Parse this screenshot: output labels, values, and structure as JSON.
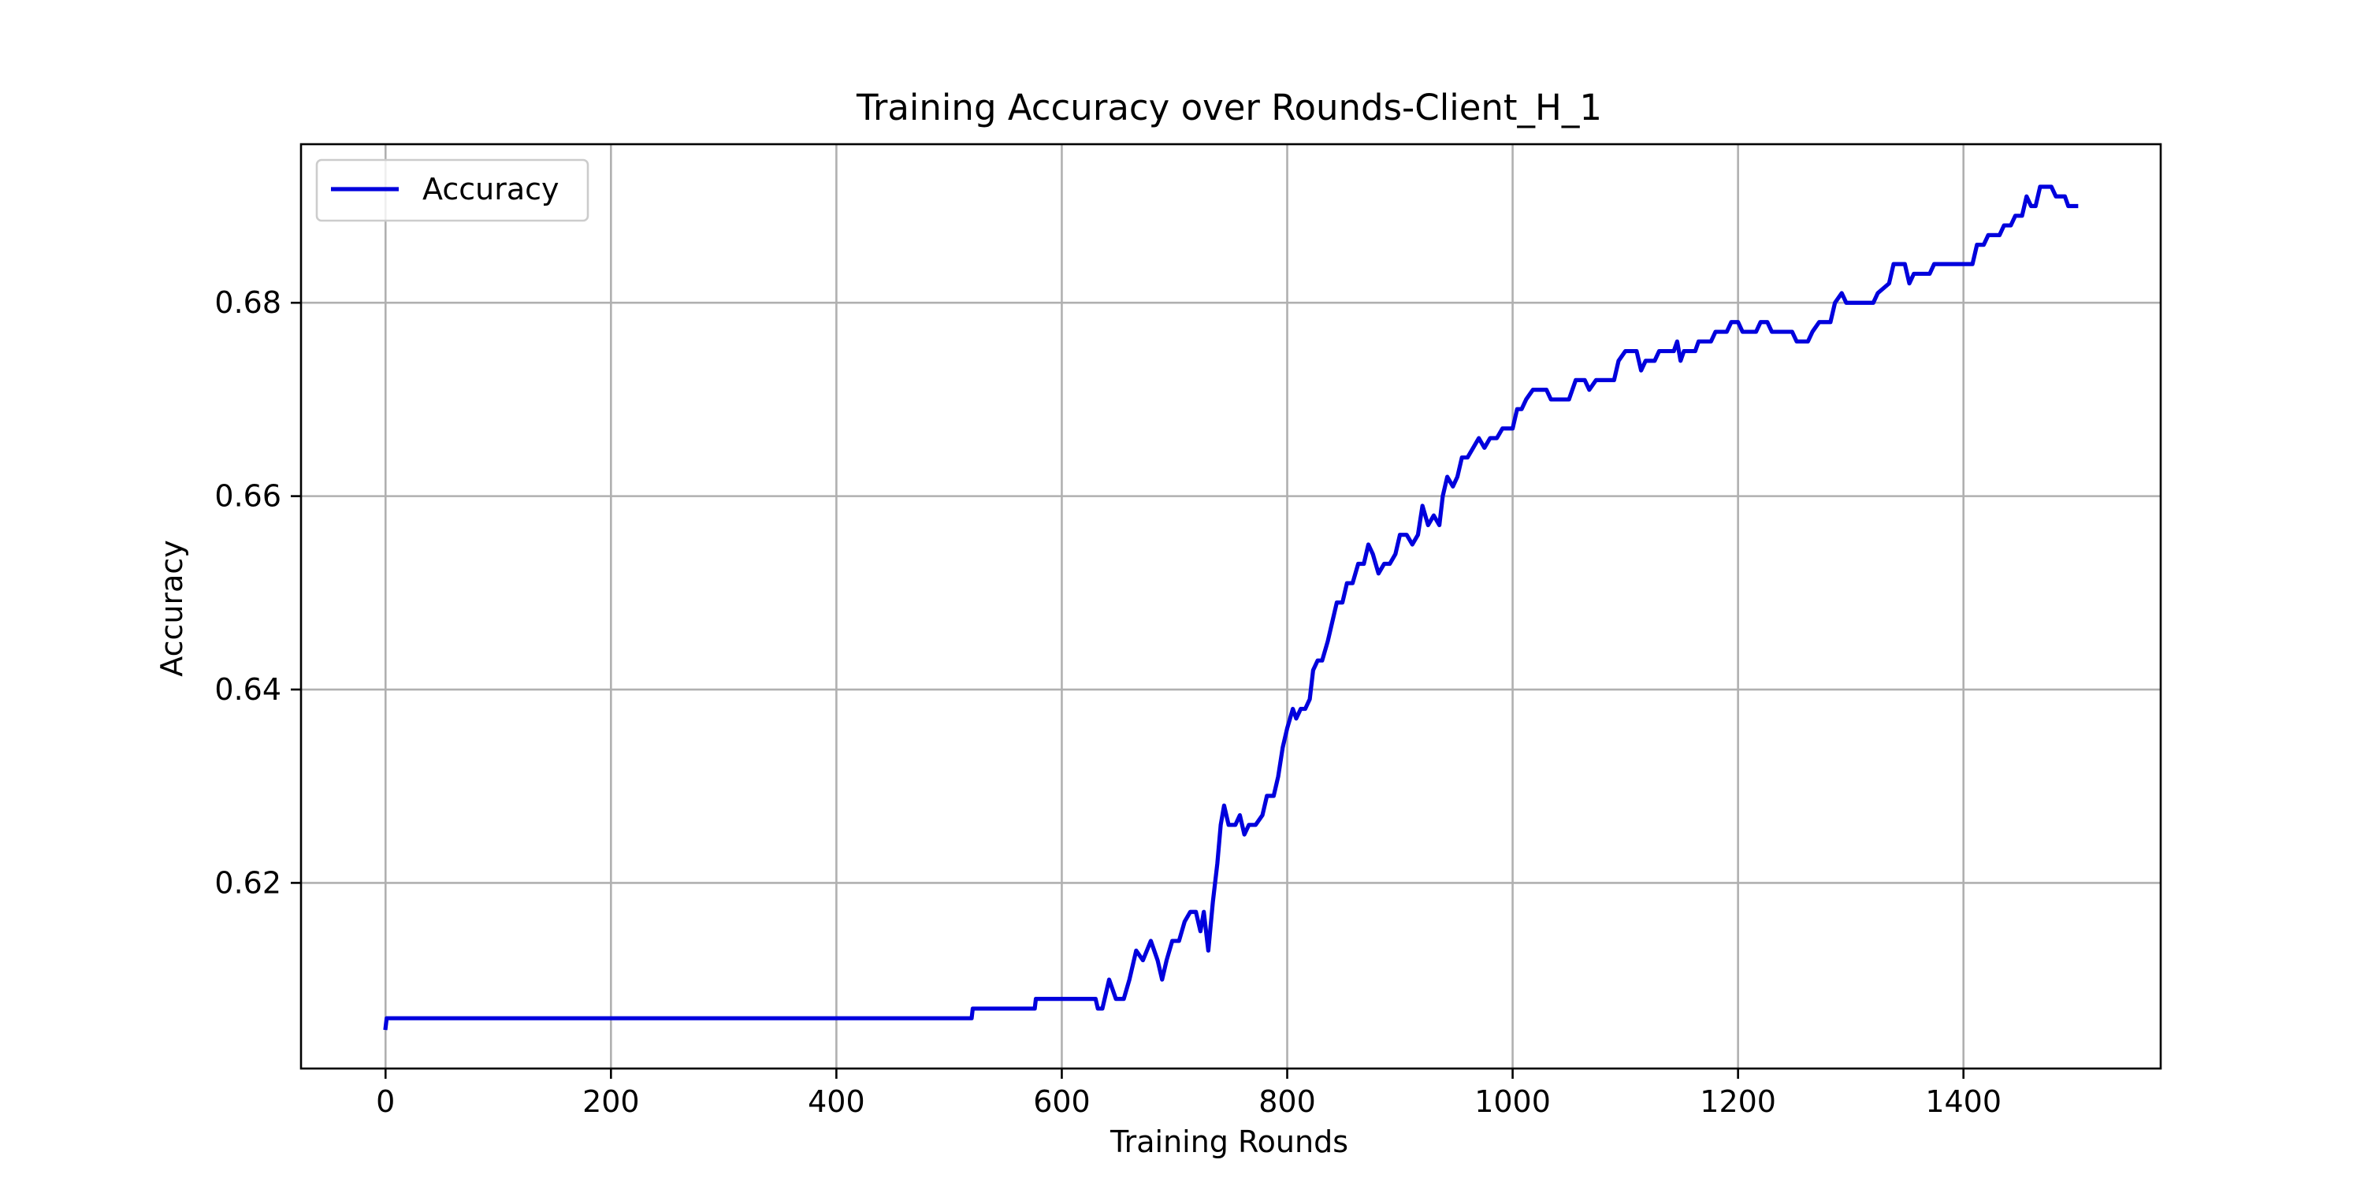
{
  "chart_data": {
    "type": "line",
    "title": "Training Accuracy over Rounds-Client_H_1",
    "xlabel": "Training Rounds",
    "ylabel": "Accuracy",
    "xlim": [
      -75,
      1575
    ],
    "ylim": [
      0.6008,
      0.6964
    ],
    "x_ticks": [
      0,
      200,
      400,
      600,
      800,
      1000,
      1200,
      1400
    ],
    "x_tick_labels": [
      "0",
      "200",
      "400",
      "600",
      "800",
      "1000",
      "1200",
      "1400"
    ],
    "y_ticks": [
      0.62,
      0.64,
      0.66,
      0.68
    ],
    "y_tick_labels": [
      "0.62",
      "0.64",
      "0.66",
      "0.68"
    ],
    "grid": true,
    "legend": {
      "position": "top-left",
      "entries": [
        "Accuracy"
      ]
    },
    "series": [
      {
        "name": "Accuracy",
        "color": "#0000dd",
        "points": [
          [
            0,
            0.605
          ],
          [
            1,
            0.606
          ],
          [
            520,
            0.606
          ],
          [
            521,
            0.607
          ],
          [
            576,
            0.607
          ],
          [
            577,
            0.608
          ],
          [
            630,
            0.608
          ],
          [
            632,
            0.607
          ],
          [
            636,
            0.607
          ],
          [
            642,
            0.61
          ],
          [
            648,
            0.608
          ],
          [
            655,
            0.608
          ],
          [
            660,
            0.61
          ],
          [
            666,
            0.613
          ],
          [
            672,
            0.612
          ],
          [
            679,
            0.614
          ],
          [
            685,
            0.612
          ],
          [
            689,
            0.61
          ],
          [
            693,
            0.612
          ],
          [
            698,
            0.614
          ],
          [
            704,
            0.614
          ],
          [
            709,
            0.616
          ],
          [
            714,
            0.617
          ],
          [
            719,
            0.617
          ],
          [
            723,
            0.615
          ],
          [
            726,
            0.617
          ],
          [
            730,
            0.613
          ],
          [
            734,
            0.618
          ],
          [
            738,
            0.622
          ],
          [
            741,
            0.626
          ],
          [
            744,
            0.628
          ],
          [
            748,
            0.626
          ],
          [
            754,
            0.626
          ],
          [
            758,
            0.627
          ],
          [
            762,
            0.625
          ],
          [
            766,
            0.626
          ],
          [
            772,
            0.626
          ],
          [
            778,
            0.627
          ],
          [
            782,
            0.629
          ],
          [
            788,
            0.629
          ],
          [
            792,
            0.631
          ],
          [
            796,
            0.634
          ],
          [
            800,
            0.636
          ],
          [
            805,
            0.638
          ],
          [
            808,
            0.637
          ],
          [
            812,
            0.638
          ],
          [
            816,
            0.638
          ],
          [
            820,
            0.639
          ],
          [
            823,
            0.642
          ],
          [
            827,
            0.643
          ],
          [
            831,
            0.643
          ],
          [
            836,
            0.645
          ],
          [
            840,
            0.647
          ],
          [
            844,
            0.649
          ],
          [
            849,
            0.649
          ],
          [
            853,
            0.651
          ],
          [
            858,
            0.651
          ],
          [
            863,
            0.653
          ],
          [
            868,
            0.653
          ],
          [
            872,
            0.655
          ],
          [
            876,
            0.654
          ],
          [
            881,
            0.652
          ],
          [
            886,
            0.653
          ],
          [
            891,
            0.653
          ],
          [
            896,
            0.654
          ],
          [
            900,
            0.656
          ],
          [
            906,
            0.656
          ],
          [
            911,
            0.655
          ],
          [
            916,
            0.656
          ],
          [
            920,
            0.659
          ],
          [
            925,
            0.657
          ],
          [
            930,
            0.658
          ],
          [
            935,
            0.657
          ],
          [
            938,
            0.66
          ],
          [
            942,
            0.662
          ],
          [
            947,
            0.661
          ],
          [
            951,
            0.662
          ],
          [
            955,
            0.664
          ],
          [
            960,
            0.664
          ],
          [
            965,
            0.665
          ],
          [
            970,
            0.666
          ],
          [
            975,
            0.665
          ],
          [
            980,
            0.666
          ],
          [
            986,
            0.666
          ],
          [
            991,
            0.667
          ],
          [
            1000,
            0.667
          ],
          [
            1004,
            0.669
          ],
          [
            1008,
            0.669
          ],
          [
            1012,
            0.67
          ],
          [
            1018,
            0.671
          ],
          [
            1030,
            0.671
          ],
          [
            1034,
            0.67
          ],
          [
            1050,
            0.67
          ],
          [
            1056,
            0.672
          ],
          [
            1064,
            0.672
          ],
          [
            1068,
            0.671
          ],
          [
            1074,
            0.672
          ],
          [
            1090,
            0.672
          ],
          [
            1094,
            0.674
          ],
          [
            1100,
            0.675
          ],
          [
            1110,
            0.675
          ],
          [
            1114,
            0.673
          ],
          [
            1118,
            0.674
          ],
          [
            1126,
            0.674
          ],
          [
            1130,
            0.675
          ],
          [
            1143,
            0.675
          ],
          [
            1146,
            0.676
          ],
          [
            1149,
            0.674
          ],
          [
            1152,
            0.675
          ],
          [
            1162,
            0.675
          ],
          [
            1165,
            0.676
          ],
          [
            1176,
            0.676
          ],
          [
            1180,
            0.677
          ],
          [
            1190,
            0.677
          ],
          [
            1194,
            0.678
          ],
          [
            1200,
            0.678
          ],
          [
            1204,
            0.677
          ],
          [
            1216,
            0.677
          ],
          [
            1220,
            0.678
          ],
          [
            1226,
            0.678
          ],
          [
            1230,
            0.677
          ],
          [
            1248,
            0.677
          ],
          [
            1252,
            0.676
          ],
          [
            1262,
            0.676
          ],
          [
            1266,
            0.677
          ],
          [
            1272,
            0.678
          ],
          [
            1282,
            0.678
          ],
          [
            1286,
            0.68
          ],
          [
            1292,
            0.681
          ],
          [
            1296,
            0.68
          ],
          [
            1320,
            0.68
          ],
          [
            1324,
            0.681
          ],
          [
            1334,
            0.682
          ],
          [
            1338,
            0.684
          ],
          [
            1348,
            0.684
          ],
          [
            1352,
            0.682
          ],
          [
            1356,
            0.683
          ],
          [
            1370,
            0.683
          ],
          [
            1374,
            0.684
          ],
          [
            1408,
            0.684
          ],
          [
            1412,
            0.686
          ],
          [
            1418,
            0.686
          ],
          [
            1422,
            0.687
          ],
          [
            1432,
            0.687
          ],
          [
            1436,
            0.688
          ],
          [
            1442,
            0.688
          ],
          [
            1446,
            0.689
          ],
          [
            1452,
            0.689
          ],
          [
            1456,
            0.691
          ],
          [
            1460,
            0.69
          ],
          [
            1464,
            0.69
          ],
          [
            1468,
            0.692
          ],
          [
            1478,
            0.692
          ],
          [
            1482,
            0.691
          ],
          [
            1490,
            0.691
          ],
          [
            1493,
            0.69
          ],
          [
            1500,
            0.69
          ]
        ]
      }
    ]
  }
}
